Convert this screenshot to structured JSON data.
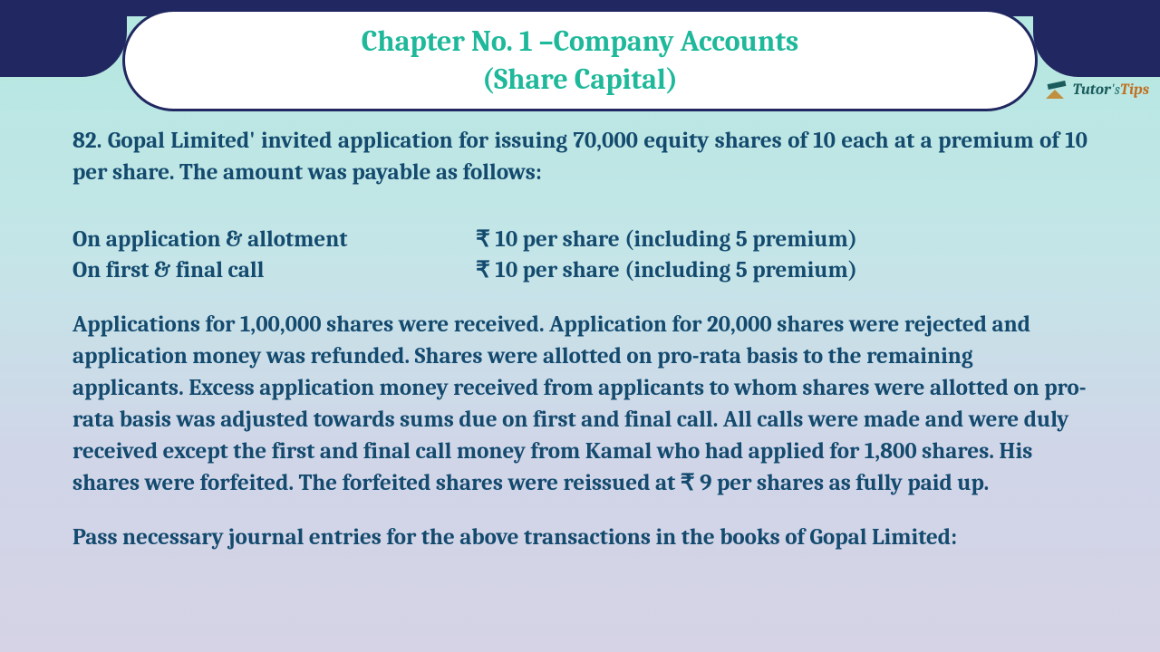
{
  "header": {
    "chapter_title_line1": "Chapter No. 1 –Company Accounts",
    "chapter_title_line2": "(Share Capital)"
  },
  "logo": {
    "text_tutor": "Tutor",
    "text_apostrophe_s": "'s",
    "text_tips": "Tips"
  },
  "question": {
    "intro": "82. Gopal Limited' invited application for issuing 70,000 equity shares of 10 each at a premium of 10 per share. The amount was payable as follows:",
    "terms": [
      {
        "label": "On application & allotment",
        "value": "₹ 10 per share (including 5 premium)"
      },
      {
        "label": "On first & final call",
        "value": "₹ 10 per share (including 5 premium)"
      }
    ],
    "body": "Applications for 1,00,000 shares were received. Application for 20,000 shares were rejected and application money was refunded. Shares were allotted on pro-rata basis to the remaining applicants. Excess application money received from applicants to whom shares were allotted on pro-rata basis was adjusted towards sums due on first and final call. All calls were made and were duly received except the first and final call money from Kamal who had applied for 1,800 shares. His shares were forfeited. The forfeited shares were reissued at ₹ 9 per shares as fully paid up.",
    "final": "Pass necessary journal entries for the above transactions in the books of Gopal Limited:"
  },
  "colors": {
    "header_bg": "#212760",
    "pill_bg": "#ffffff",
    "title_color": "#1eb89a",
    "body_text": "#134a6e",
    "gradient_top": "#b3e8e0",
    "gradient_bottom": "#d5d3e5"
  }
}
